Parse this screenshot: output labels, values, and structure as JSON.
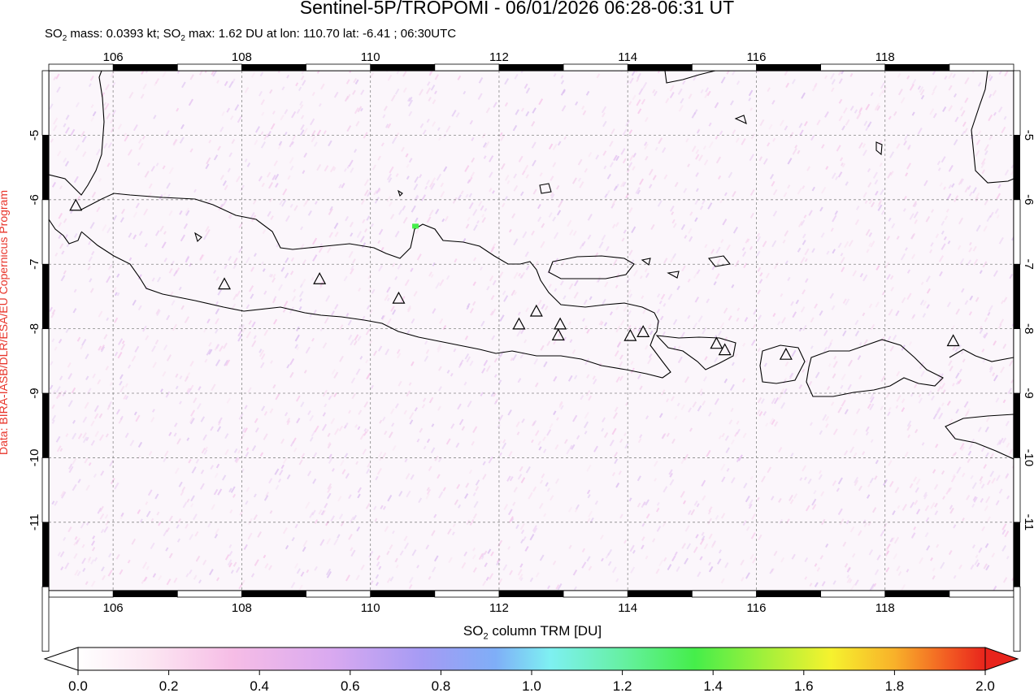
{
  "title": "Sentinel-5P/TROPOMI - 06/01/2026 06:28-06:31 UT",
  "subtitle_parts": {
    "a": "SO",
    "a_sub": "2",
    "b": " mass: 0.0393 kt; SO",
    "b_sub": "2",
    "c": " max: 1.62 DU at lon: 110.70 lat: -6.41 ; 06:30UTC"
  },
  "credit": "Data: BIRA-IASB/DLR/ESA/EU Copernicus Program",
  "map": {
    "lon_range": [
      105,
      120
    ],
    "lat_range": [
      -12.06,
      -4.0
    ],
    "lon_ticks": [
      "106",
      "108",
      "110",
      "112",
      "114",
      "116",
      "118"
    ],
    "lat_ticks": [
      "-5",
      "-6",
      "-7",
      "-8",
      "-9",
      "-10",
      "-11"
    ],
    "grid": "dashed",
    "volcanoes": [
      {
        "lon": 105.42,
        "lat": -6.1
      },
      {
        "lon": 107.73,
        "lat": -7.32
      },
      {
        "lon": 109.21,
        "lat": -7.24
      },
      {
        "lon": 110.44,
        "lat": -7.54
      },
      {
        "lon": 112.31,
        "lat": -7.94
      },
      {
        "lon": 112.58,
        "lat": -7.74
      },
      {
        "lon": 112.95,
        "lat": -7.94
      },
      {
        "lon": 112.92,
        "lat": -8.11
      },
      {
        "lon": 114.04,
        "lat": -8.12
      },
      {
        "lon": 114.24,
        "lat": -8.06
      },
      {
        "lon": 115.38,
        "lat": -8.24
      },
      {
        "lon": 115.51,
        "lat": -8.34
      },
      {
        "lon": 116.46,
        "lat": -8.41
      },
      {
        "lon": 119.06,
        "lat": -8.2
      }
    ],
    "max_marker": {
      "lon": 110.7,
      "lat": -6.41,
      "value": 1.62
    }
  },
  "colorbar": {
    "label_parts": {
      "a": "SO",
      "a_sub": "2",
      "b": " column TRM [DU]"
    },
    "ticks": [
      "0.0",
      "0.2",
      "0.4",
      "0.6",
      "0.8",
      "1.0",
      "1.2",
      "1.4",
      "1.6",
      "1.8",
      "2.0"
    ],
    "range": [
      0.0,
      2.0
    ],
    "colors": [
      "#ffffff",
      "#fce6f2",
      "#f6bde6",
      "#d9a9f0",
      "#a59bf4",
      "#7faef7",
      "#7ef0f2",
      "#66f0a3",
      "#45ee4a",
      "#a6f03a",
      "#f6f22e",
      "#f8b12a",
      "#f25a22",
      "#e8241c"
    ]
  }
}
